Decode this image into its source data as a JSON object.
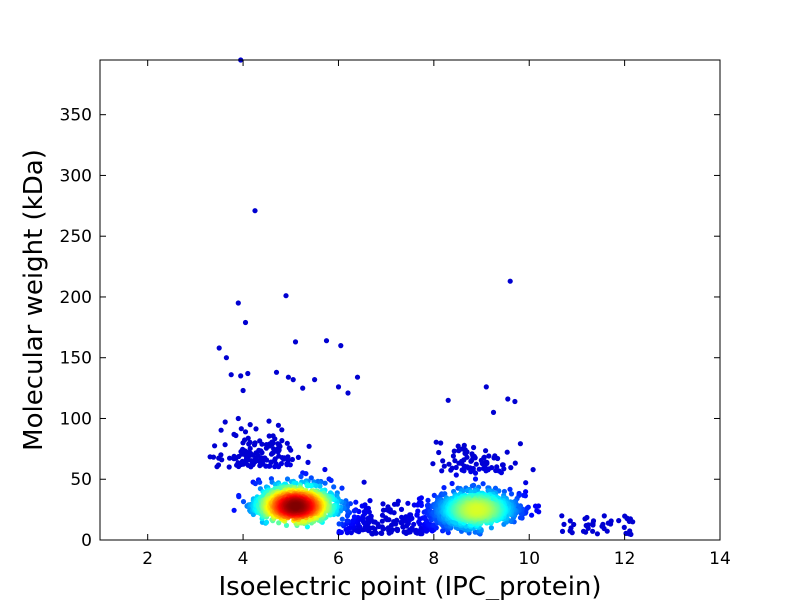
{
  "chart_data": {
    "type": "scatter",
    "xlabel": "Isoelectric point (IPC_protein)",
    "ylabel": "Molecular weight (kDa)",
    "xlim": [
      1,
      14
    ],
    "ylim": [
      0,
      395
    ],
    "xticks": [
      2,
      4,
      6,
      8,
      10,
      12,
      14
    ],
    "yticks": [
      0,
      50,
      100,
      150,
      200,
      250,
      300,
      350
    ],
    "grid": false,
    "colormap": "jet (point density)",
    "colors": {
      "low_density": "#00008f",
      "mid_density": "#00bfff",
      "high_density": "#ff0000"
    },
    "clusters": [
      {
        "center_x": 5.1,
        "center_y": 28,
        "peak": "high"
      },
      {
        "center_x": 8.9,
        "center_y": 25,
        "peak": "medium"
      }
    ],
    "outliers": [
      {
        "x": 3.95,
        "y": 395
      },
      {
        "x": 4.25,
        "y": 271
      },
      {
        "x": 9.6,
        "y": 213
      },
      {
        "x": 4.9,
        "y": 201
      },
      {
        "x": 3.9,
        "y": 195
      },
      {
        "x": 4.05,
        "y": 179
      },
      {
        "x": 5.75,
        "y": 164
      },
      {
        "x": 5.1,
        "y": 163
      },
      {
        "x": 6.05,
        "y": 160
      },
      {
        "x": 3.5,
        "y": 158
      },
      {
        "x": 3.65,
        "y": 150
      },
      {
        "x": 4.1,
        "y": 137
      },
      {
        "x": 3.75,
        "y": 136
      },
      {
        "x": 3.95,
        "y": 135
      },
      {
        "x": 4.7,
        "y": 138
      },
      {
        "x": 4.95,
        "y": 134
      },
      {
        "x": 5.05,
        "y": 132
      },
      {
        "x": 5.5,
        "y": 132
      },
      {
        "x": 6.4,
        "y": 134
      },
      {
        "x": 5.25,
        "y": 125
      },
      {
        "x": 6.0,
        "y": 126
      },
      {
        "x": 6.2,
        "y": 121
      },
      {
        "x": 4.0,
        "y": 123
      },
      {
        "x": 9.1,
        "y": 126
      },
      {
        "x": 8.3,
        "y": 115
      },
      {
        "x": 9.55,
        "y": 116
      },
      {
        "x": 9.7,
        "y": 114
      },
      {
        "x": 3.9,
        "y": 100
      },
      {
        "x": 4.15,
        "y": 95
      },
      {
        "x": 4.05,
        "y": 89
      },
      {
        "x": 9.25,
        "y": 105
      }
    ]
  }
}
